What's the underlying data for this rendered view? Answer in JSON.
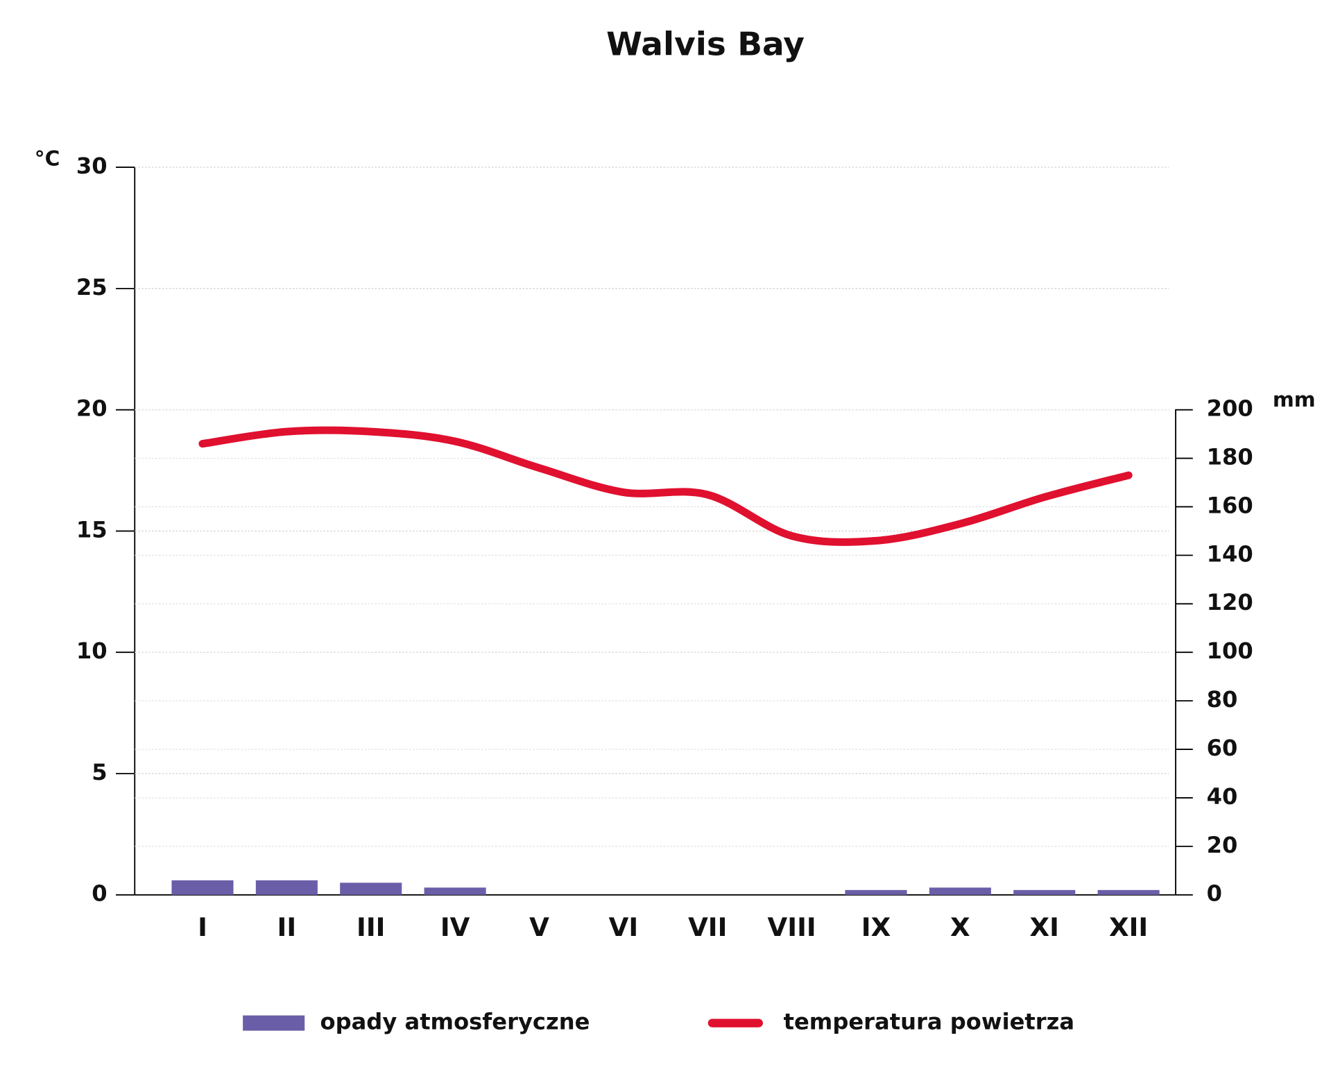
{
  "chart_data": {
    "type": "bar-line",
    "title": "Walvis Bay",
    "y_unit": "°C",
    "y2_unit": "mm",
    "categories": [
      "I",
      "II",
      "III",
      "IV",
      "V",
      "VI",
      "VII",
      "VIII",
      "IX",
      "X",
      "XI",
      "XII"
    ],
    "series": [
      {
        "name": "opady atmosferyczne",
        "type": "bar",
        "axis": "y2",
        "color": "#6b5ea8",
        "values": [
          6,
          6,
          5,
          3,
          0,
          0,
          0,
          0,
          2,
          3,
          2,
          2
        ]
      },
      {
        "name": "temperatura powietrza",
        "type": "line",
        "color": "#e0102f",
        "values": [
          18.6,
          19.1,
          19.1,
          18.7,
          17.6,
          16.6,
          16.5,
          14.8,
          14.6,
          15.3,
          16.4,
          17.3
        ]
      }
    ],
    "ylim": [
      0,
      30
    ],
    "yticks": [
      0,
      5,
      10,
      15,
      20,
      25,
      30
    ],
    "y2lim": [
      0,
      300
    ],
    "y2ticks": [
      0,
      20,
      40,
      60,
      80,
      100,
      120,
      140,
      160,
      180,
      200
    ],
    "grid": true
  }
}
